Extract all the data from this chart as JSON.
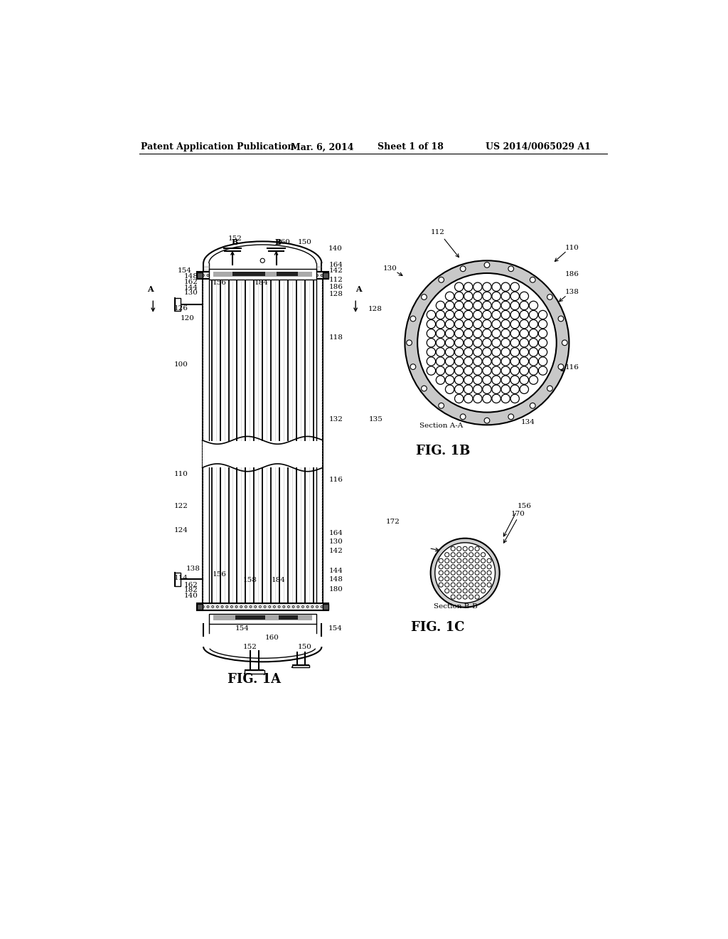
{
  "bg_color": "#ffffff",
  "line_color": "#000000",
  "header_text": "Patent Application Publication",
  "header_date": "Mar. 6, 2014",
  "header_sheet": "Sheet 1 of 18",
  "header_patent": "US 2014/0065029 A1",
  "fig1a_label": "FIG. 1A",
  "fig1b_label": "FIG. 1B",
  "fig1c_label": "FIG. 1C",
  "section_aa": "Section A-A",
  "section_bb": "Section B-B"
}
